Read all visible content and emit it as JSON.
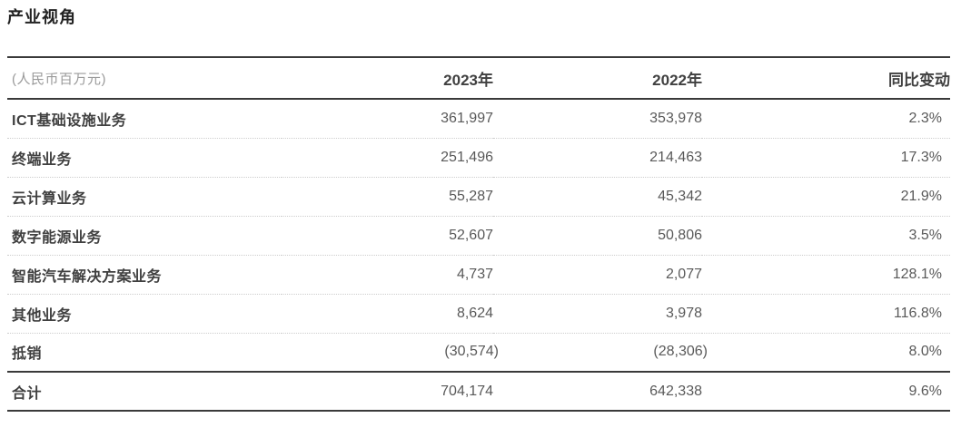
{
  "page": {
    "title": "产业视角"
  },
  "table": {
    "unit_label": "(人民币百万元)",
    "columns": [
      "2023年",
      "2022年",
      "同比变动"
    ],
    "rows": [
      {
        "label": "ICT基础设施业务",
        "y2023": "361,997",
        "y2022": "353,978",
        "yoy": "2.3%"
      },
      {
        "label": "终端业务",
        "y2023": "251,496",
        "y2022": "214,463",
        "yoy": "17.3%"
      },
      {
        "label": "云计算业务",
        "y2023": "55,287",
        "y2022": "45,342",
        "yoy": "21.9%"
      },
      {
        "label": "数字能源业务",
        "y2023": "52,607",
        "y2022": "50,806",
        "yoy": "3.5%"
      },
      {
        "label": "智能汽车解决方案业务",
        "y2023": "4,737",
        "y2022": "2,077",
        "yoy": "128.1%"
      },
      {
        "label": "其他业务",
        "y2023": "8,624",
        "y2022": "3,978",
        "yoy": "116.8%"
      },
      {
        "label": "抵销",
        "y2023": "(30,574)",
        "y2022": "(28,306)",
        "yoy": "8.0%"
      },
      {
        "label": "合计",
        "y2023": "704,174",
        "y2022": "642,338",
        "yoy": "9.6%",
        "total": true
      }
    ],
    "colors": {
      "rule_line": "#3a3a3a",
      "dotted_line": "#cdcdcd",
      "title_text": "#222222",
      "header_text": "#404040",
      "label_text": "#404040",
      "value_text": "#595959",
      "unit_text": "#9a9a9a"
    }
  }
}
